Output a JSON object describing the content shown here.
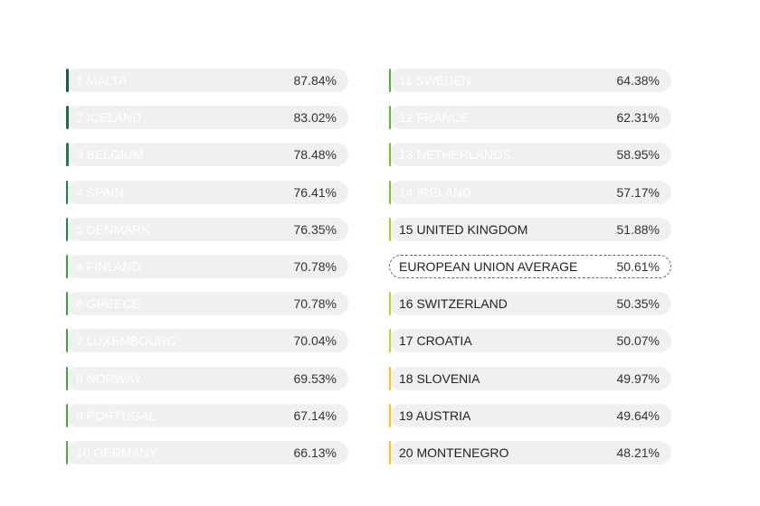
{
  "chart_data": {
    "type": "bar",
    "orientation": "horizontal",
    "xlim": [
      0,
      100
    ],
    "unit": "%",
    "columns": [
      {
        "rows": [
          {
            "label": "1 MALTA",
            "value_label": "87.84%",
            "value": 87.84,
            "color": "#006b37"
          },
          {
            "label": "2 ICELAND",
            "value_label": "83.02%",
            "value": 83.02,
            "color": "#067a3e"
          },
          {
            "label": "3 BELGIUM",
            "value_label": "78.48%",
            "value": 78.48,
            "color": "#0c8543"
          },
          {
            "label": "4 SPAIN",
            "value_label": "76.41%",
            "value": 76.41,
            "color": "#118a46"
          },
          {
            "label": "5 DENMARK",
            "value_label": "76.35%",
            "value": 76.35,
            "color": "#128b47"
          },
          {
            "label": "6 FINLAND",
            "value_label": "70.78%",
            "value": 70.78,
            "color": "#3c9e45"
          },
          {
            "label": "6 GREECE",
            "value_label": "70.78%",
            "value": 70.78,
            "color": "#3c9e45"
          },
          {
            "label": "7 LUXEMBOURG",
            "value_label": "70.04%",
            "value": 70.04,
            "color": "#3fa045"
          },
          {
            "label": "8 NORWAY",
            "value_label": "69.53%",
            "value": 69.53,
            "color": "#42a245"
          },
          {
            "label": "9 PORTUGAL",
            "value_label": "67.14%",
            "value": 67.14,
            "color": "#4ba843"
          },
          {
            "label": "10 GERMANY",
            "value_label": "66.13%",
            "value": 66.13,
            "color": "#50aa42"
          }
        ]
      },
      {
        "rows": [
          {
            "label": "11 SWEDEN",
            "value_label": "64.38%",
            "value": 64.38,
            "color": "#57ad3f"
          },
          {
            "label": "12 FRANCE",
            "value_label": "62.31%",
            "value": 62.31,
            "color": "#62b33c"
          },
          {
            "label": "13 NETHERLANDS",
            "value_label": "58.95%",
            "value": 58.95,
            "color": "#78bb37"
          },
          {
            "label": "14 IRELAND",
            "value_label": "57.17%",
            "value": 57.17,
            "color": "#82bf35"
          },
          {
            "label": "15 UNITED KINGDOM",
            "value_label": "51.88%",
            "value": 51.88,
            "color": "#a6cc2c",
            "dark_text": true
          },
          {
            "label": "EUROPEAN UNION AVERAGE",
            "value_label": "50.61%",
            "value": 50.61,
            "is_average": true
          },
          {
            "label": "16 SWITZERLAND",
            "value_label": "50.35%",
            "value": 50.35,
            "color": "#b4d332",
            "dark_text": true
          },
          {
            "label": "17 CROATIA",
            "value_label": "50.07%",
            "value": 50.07,
            "color": "#b9d537",
            "dark_text": true
          },
          {
            "label": "18 SLOVENIA",
            "value_label": "49.97%",
            "value": 49.97,
            "color": "#fbc900",
            "dark_text": true
          },
          {
            "label": "19 AUSTRIA",
            "value_label": "49.64%",
            "value": 49.64,
            "color": "#fcc900",
            "dark_text": true
          },
          {
            "label": "20 MONTENEGRO",
            "value_label": "48.21%",
            "value": 48.21,
            "color": "#fcc900",
            "dark_text": true
          }
        ]
      }
    ]
  }
}
